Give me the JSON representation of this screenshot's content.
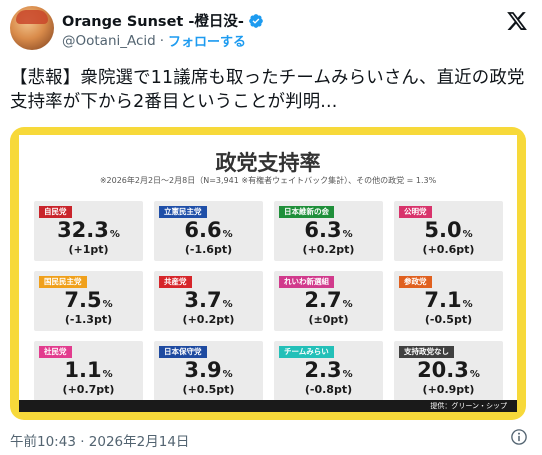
{
  "header": {
    "display_name": "Orange Sunset -橙日没-",
    "handle": "@Ootani_Acid",
    "separator": "·",
    "follow_label": "フォローする"
  },
  "tweet": {
    "text": "【悲報】衆院選で11議席も取ったチームみらいさん、直近の政党支持率が下から2番目ということが判明..."
  },
  "image": {
    "title": "政党支持率",
    "subtitle": "※2026年2月2日～2月8日（N=3,941 ※有権者ウェイトバック集計）、その他の政党 = 1.3%",
    "source": "提供：グリーン・シップ",
    "tiles": [
      {
        "party": "自民党",
        "value": "32.3",
        "unit": "%",
        "change": "(+1pt)",
        "color": "#c9242b"
      },
      {
        "party": "立憲民主党",
        "value": "6.6",
        "unit": "%",
        "change": "(-1.6pt)",
        "color": "#1f4fa8"
      },
      {
        "party": "日本維新の会",
        "value": "6.3",
        "unit": "%",
        "change": "(+0.2pt)",
        "color": "#1f8f3a"
      },
      {
        "party": "公明党",
        "value": "5.0",
        "unit": "%",
        "change": "(+0.6pt)",
        "color": "#d8336b"
      },
      {
        "party": "国民民主党",
        "value": "7.5",
        "unit": "%",
        "change": "(-1.3pt)",
        "color": "#f0a01b"
      },
      {
        "party": "共産党",
        "value": "3.7",
        "unit": "%",
        "change": "(+0.2pt)",
        "color": "#d6252a"
      },
      {
        "party": "れいわ新選組",
        "value": "2.7",
        "unit": "%",
        "change": "(±0pt)",
        "color": "#d13a8c"
      },
      {
        "party": "参政党",
        "value": "7.1",
        "unit": "%",
        "change": "(-0.5pt)",
        "color": "#e0601f"
      },
      {
        "party": "社民党",
        "value": "1.1",
        "unit": "%",
        "change": "(+0.7pt)",
        "color": "#e23c8e"
      },
      {
        "party": "日本保守党",
        "value": "3.9",
        "unit": "%",
        "change": "(+0.5pt)",
        "color": "#1e4aa0"
      },
      {
        "party": "チームみらい",
        "value": "2.3",
        "unit": "%",
        "change": "(-0.8pt)",
        "color": "#23c0b8"
      },
      {
        "party": "支持政党なし",
        "value": "20.3",
        "unit": "%",
        "change": "(+0.9pt)",
        "color": "#404040"
      }
    ]
  },
  "footer": {
    "timestamp": "午前10:43 · 2026年2月14日"
  },
  "icons": {
    "verified": "verified-badge-icon",
    "x_logo": "x-logo-icon",
    "info": "info-icon"
  },
  "colors": {
    "accent": "#1d9bf0",
    "card_border": "#f7d93a"
  }
}
